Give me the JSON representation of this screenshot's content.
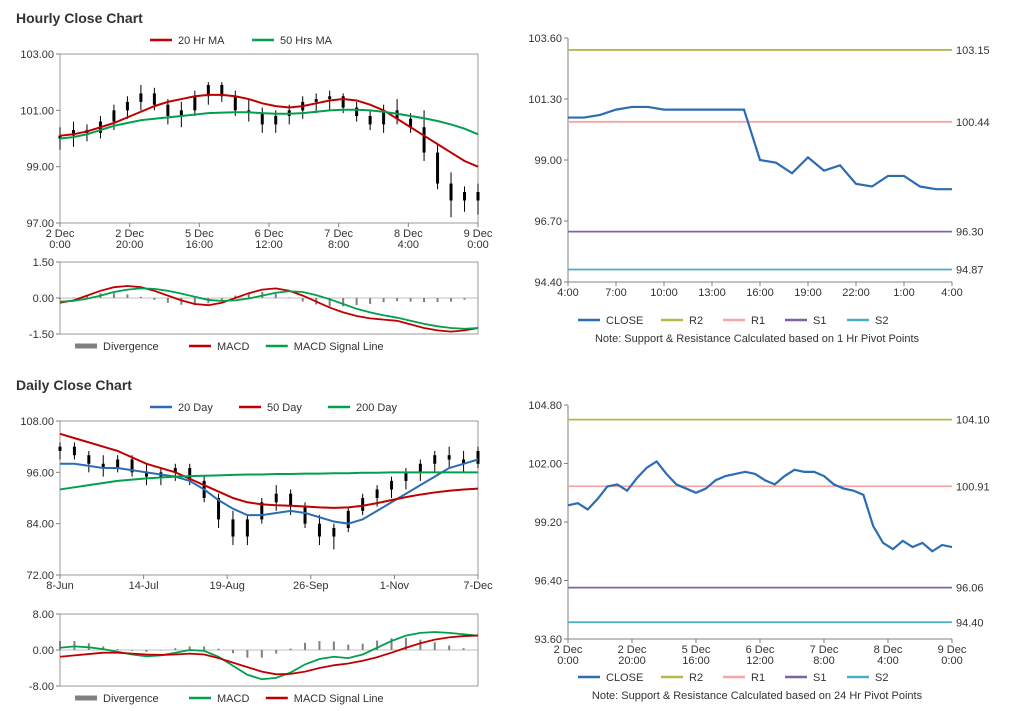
{
  "colors": {
    "axis": "#808080",
    "gridline": "#e0e0e0",
    "text": "#333333",
    "divergence": "#808080",
    "red": "#c00000",
    "green": "#00a04e",
    "blue": "#2b6cb3",
    "black": "#000000",
    "olive": "#b7b74a",
    "pink": "#f6a6a6",
    "purple": "#8064a2",
    "cyan": "#4bacc6",
    "background": "#ffffff"
  },
  "typography": {
    "title_fontsize": 14,
    "axis_fontsize": 11,
    "legend_fontsize": 11,
    "value_label_fontsize": 11
  },
  "hourly": {
    "title": "Hourly Close Chart",
    "main": {
      "y_ticks": [
        97,
        99,
        101,
        103
      ],
      "x_ticks": [
        "2 Dec\n0:00",
        "2 Dec\n20:00",
        "5 Dec\n16:00",
        "6 Dec\n12:00",
        "7 Dec\n8:00",
        "8 Dec\n4:00",
        "9 Dec\n0:00"
      ],
      "legend": {
        "ma20": "20 Hr MA",
        "ma50": "50 Hrs MA"
      },
      "ma20_color": "#c00000",
      "ma50_color": "#00a04e",
      "price_color": "#000000",
      "candles": [
        {
          "x": 0,
          "o": 100.0,
          "h": 100.4,
          "l": 99.6,
          "c": 100.1
        },
        {
          "x": 1,
          "o": 100.1,
          "h": 100.6,
          "l": 99.7,
          "c": 100.3
        },
        {
          "x": 2,
          "o": 100.3,
          "h": 100.5,
          "l": 99.9,
          "c": 100.2
        },
        {
          "x": 3,
          "o": 100.2,
          "h": 100.8,
          "l": 100.0,
          "c": 100.6
        },
        {
          "x": 4,
          "o": 100.6,
          "h": 101.2,
          "l": 100.3,
          "c": 101.0
        },
        {
          "x": 5,
          "o": 101.0,
          "h": 101.5,
          "l": 100.7,
          "c": 101.3
        },
        {
          "x": 6,
          "o": 101.3,
          "h": 101.9,
          "l": 101.0,
          "c": 101.6
        },
        {
          "x": 7,
          "o": 101.6,
          "h": 101.8,
          "l": 101.0,
          "c": 101.2
        },
        {
          "x": 8,
          "o": 101.2,
          "h": 101.4,
          "l": 100.5,
          "c": 100.8
        },
        {
          "x": 9,
          "o": 100.8,
          "h": 101.3,
          "l": 100.4,
          "c": 101.0
        },
        {
          "x": 10,
          "o": 101.0,
          "h": 101.7,
          "l": 100.8,
          "c": 101.5
        },
        {
          "x": 11,
          "o": 101.5,
          "h": 102.0,
          "l": 101.2,
          "c": 101.9
        },
        {
          "x": 12,
          "o": 101.9,
          "h": 102.0,
          "l": 101.3,
          "c": 101.5
        },
        {
          "x": 13,
          "o": 101.5,
          "h": 101.7,
          "l": 100.8,
          "c": 101.0
        },
        {
          "x": 14,
          "o": 101.0,
          "h": 101.4,
          "l": 100.6,
          "c": 100.9
        },
        {
          "x": 15,
          "o": 100.9,
          "h": 101.1,
          "l": 100.2,
          "c": 100.5
        },
        {
          "x": 16,
          "o": 100.5,
          "h": 101.0,
          "l": 100.2,
          "c": 100.8
        },
        {
          "x": 17,
          "o": 100.8,
          "h": 101.2,
          "l": 100.5,
          "c": 101.0
        },
        {
          "x": 18,
          "o": 101.0,
          "h": 101.5,
          "l": 100.7,
          "c": 101.3
        },
        {
          "x": 19,
          "o": 101.3,
          "h": 101.6,
          "l": 100.9,
          "c": 101.4
        },
        {
          "x": 20,
          "o": 101.4,
          "h": 101.7,
          "l": 101.0,
          "c": 101.5
        },
        {
          "x": 21,
          "o": 101.5,
          "h": 101.6,
          "l": 100.9,
          "c": 101.1
        },
        {
          "x": 22,
          "o": 101.1,
          "h": 101.3,
          "l": 100.6,
          "c": 100.8
        },
        {
          "x": 23,
          "o": 100.8,
          "h": 101.0,
          "l": 100.3,
          "c": 100.5
        },
        {
          "x": 24,
          "o": 100.5,
          "h": 101.2,
          "l": 100.2,
          "c": 101.0
        },
        {
          "x": 25,
          "o": 101.0,
          "h": 101.4,
          "l": 100.5,
          "c": 100.7
        },
        {
          "x": 26,
          "o": 100.7,
          "h": 100.9,
          "l": 100.2,
          "c": 100.4
        },
        {
          "x": 27,
          "o": 100.4,
          "h": 101.0,
          "l": 99.2,
          "c": 99.5
        },
        {
          "x": 28,
          "o": 99.5,
          "h": 99.8,
          "l": 98.2,
          "c": 98.4
        },
        {
          "x": 29,
          "o": 98.4,
          "h": 98.8,
          "l": 97.2,
          "c": 97.8
        },
        {
          "x": 30,
          "o": 97.8,
          "h": 98.3,
          "l": 97.4,
          "c": 98.1
        },
        {
          "x": 31,
          "o": 98.1,
          "h": 98.4,
          "l": 97.3,
          "c": 97.8
        }
      ],
      "ma20": [
        100.1,
        100.15,
        100.25,
        100.4,
        100.55,
        100.75,
        100.95,
        101.15,
        101.3,
        101.4,
        101.5,
        101.55,
        101.55,
        101.5,
        101.4,
        101.25,
        101.15,
        101.1,
        101.15,
        101.25,
        101.35,
        101.4,
        101.35,
        101.2,
        101.0,
        100.7,
        100.4,
        100.1,
        99.8,
        99.5,
        99.2,
        99.0
      ],
      "ma50": [
        100.0,
        100.05,
        100.15,
        100.3,
        100.45,
        100.55,
        100.65,
        100.7,
        100.75,
        100.8,
        100.85,
        100.9,
        100.92,
        100.93,
        100.93,
        100.9,
        100.88,
        100.88,
        100.9,
        100.95,
        101.0,
        101.02,
        101.02,
        101.0,
        100.95,
        100.88,
        100.8,
        100.72,
        100.62,
        100.5,
        100.35,
        100.15
      ]
    },
    "macd": {
      "y_ticks": [
        -1.5,
        0,
        1.5
      ],
      "legend": {
        "div": "Divergence",
        "macd": "MACD",
        "sig": "MACD Signal Line"
      },
      "macd_color": "#c00000",
      "sig_color": "#00a04e",
      "div_color": "#808080",
      "macd_vals": [
        -0.2,
        -0.1,
        0.1,
        0.3,
        0.45,
        0.5,
        0.45,
        0.3,
        0.1,
        -0.1,
        -0.25,
        -0.3,
        -0.2,
        0.0,
        0.2,
        0.35,
        0.4,
        0.3,
        0.1,
        -0.15,
        -0.4,
        -0.6,
        -0.75,
        -0.85,
        -0.9,
        -0.95,
        -1.1,
        -1.25,
        -1.35,
        -1.4,
        -1.35,
        -1.25
      ],
      "sig_vals": [
        -0.15,
        -0.12,
        -0.03,
        0.1,
        0.25,
        0.35,
        0.4,
        0.38,
        0.3,
        0.18,
        0.05,
        -0.08,
        -0.12,
        -0.1,
        -0.02,
        0.1,
        0.22,
        0.28,
        0.25,
        0.12,
        -0.05,
        -0.25,
        -0.45,
        -0.6,
        -0.72,
        -0.82,
        -0.95,
        -1.08,
        -1.18,
        -1.25,
        -1.28,
        -1.25
      ]
    },
    "sr": {
      "y_ticks": [
        94.4,
        96.7,
        99.0,
        101.3,
        103.6
      ],
      "x_ticks": [
        "4:00",
        "7:00",
        "10:00",
        "13:00",
        "16:00",
        "19:00",
        "22:00",
        "1:00",
        "4:00"
      ],
      "levels": {
        "r2": 103.15,
        "r1": 100.44,
        "s1": 96.3,
        "s2": 94.87
      },
      "level_labels": {
        "r2": "103.15",
        "r1": "100.44",
        "s1": "96.30",
        "s2": "94.87"
      },
      "legend": {
        "close": "CLOSE",
        "r2": "R2",
        "r1": "R1",
        "s1": "S1",
        "s2": "S2"
      },
      "close_color": "#2b6cb3",
      "r2_color": "#b7b74a",
      "r1_color": "#f6a6a6",
      "s1_color": "#8064a2",
      "s2_color": "#4bacc6",
      "close": [
        100.6,
        100.6,
        100.7,
        100.9,
        101.0,
        101.0,
        100.9,
        100.9,
        100.9,
        100.9,
        100.9,
        100.9,
        99.0,
        98.9,
        98.5,
        99.1,
        98.6,
        98.8,
        98.1,
        98.0,
        98.4,
        98.4,
        98.0,
        97.9,
        97.9
      ],
      "note": "Note: Support & Resistance Calculated based on 1 Hr Pivot Points"
    }
  },
  "daily": {
    "title": "Daily Close Chart",
    "main": {
      "y_ticks": [
        72,
        84,
        96,
        108
      ],
      "x_ticks": [
        "8-Jun",
        "14-Jul",
        "19-Aug",
        "26-Sep",
        "1-Nov",
        "7-Dec"
      ],
      "legend": {
        "d20": "20 Day",
        "d50": "50 Day",
        "d200": "200 Day"
      },
      "d20_color": "#2b6cb3",
      "d50_color": "#c00000",
      "d200_color": "#00a04e",
      "price_color": "#000000",
      "candles": [
        {
          "x": 0,
          "o": 101,
          "h": 103,
          "l": 99,
          "c": 102
        },
        {
          "x": 1,
          "o": 102,
          "h": 103,
          "l": 99,
          "c": 100
        },
        {
          "x": 2,
          "o": 100,
          "h": 101,
          "l": 96,
          "c": 98
        },
        {
          "x": 3,
          "o": 98,
          "h": 100,
          "l": 95,
          "c": 97
        },
        {
          "x": 4,
          "o": 97,
          "h": 100,
          "l": 96,
          "c": 99
        },
        {
          "x": 5,
          "o": 99,
          "h": 100,
          "l": 95,
          "c": 96
        },
        {
          "x": 6,
          "o": 96,
          "h": 98,
          "l": 93,
          "c": 95
        },
        {
          "x": 7,
          "o": 95,
          "h": 97,
          "l": 93,
          "c": 96
        },
        {
          "x": 8,
          "o": 96,
          "h": 98,
          "l": 94,
          "c": 97
        },
        {
          "x": 9,
          "o": 97,
          "h": 98,
          "l": 93,
          "c": 94
        },
        {
          "x": 10,
          "o": 94,
          "h": 95,
          "l": 89,
          "c": 90
        },
        {
          "x": 11,
          "o": 90,
          "h": 91,
          "l": 83,
          "c": 85
        },
        {
          "x": 12,
          "o": 85,
          "h": 87,
          "l": 79,
          "c": 81
        },
        {
          "x": 13,
          "o": 81,
          "h": 86,
          "l": 79,
          "c": 85
        },
        {
          "x": 14,
          "o": 85,
          "h": 90,
          "l": 84,
          "c": 89
        },
        {
          "x": 15,
          "o": 89,
          "h": 93,
          "l": 87,
          "c": 91
        },
        {
          "x": 16,
          "o": 91,
          "h": 92,
          "l": 86,
          "c": 88
        },
        {
          "x": 17,
          "o": 88,
          "h": 89,
          "l": 83,
          "c": 84
        },
        {
          "x": 18,
          "o": 84,
          "h": 86,
          "l": 79,
          "c": 81
        },
        {
          "x": 19,
          "o": 81,
          "h": 84,
          "l": 78,
          "c": 83
        },
        {
          "x": 20,
          "o": 83,
          "h": 88,
          "l": 82,
          "c": 87
        },
        {
          "x": 21,
          "o": 87,
          "h": 91,
          "l": 86,
          "c": 90
        },
        {
          "x": 22,
          "o": 90,
          "h": 93,
          "l": 88,
          "c": 92
        },
        {
          "x": 23,
          "o": 92,
          "h": 95,
          "l": 90,
          "c": 94
        },
        {
          "x": 24,
          "o": 94,
          "h": 97,
          "l": 92,
          "c": 96
        },
        {
          "x": 25,
          "o": 96,
          "h": 99,
          "l": 94,
          "c": 98
        },
        {
          "x": 26,
          "o": 98,
          "h": 101,
          "l": 96,
          "c": 100
        },
        {
          "x": 27,
          "o": 100,
          "h": 102,
          "l": 97,
          "c": 99
        },
        {
          "x": 28,
          "o": 99,
          "h": 101,
          "l": 96,
          "c": 98
        },
        {
          "x": 29,
          "o": 98,
          "h": 102,
          "l": 97,
          "c": 101
        }
      ],
      "d20": [
        98,
        98,
        97.5,
        97,
        97,
        96.5,
        96,
        95.5,
        95,
        94,
        92,
        89.5,
        87.5,
        86,
        86,
        86.5,
        87,
        86.5,
        85.5,
        84.5,
        84,
        85,
        87,
        89,
        91,
        93,
        95,
        97,
        98,
        99
      ],
      "d50": [
        105,
        104,
        103,
        102,
        101,
        99.5,
        98,
        97,
        96,
        94.5,
        93,
        91.5,
        90,
        89,
        88.5,
        88.3,
        88.2,
        88,
        87.8,
        87.7,
        87.8,
        88.2,
        88.8,
        89.5,
        90.2,
        90.8,
        91.3,
        91.7,
        92.0,
        92.2
      ],
      "d200": [
        92,
        92.5,
        93,
        93.5,
        94,
        94.3,
        94.6,
        94.8,
        95,
        95.1,
        95.2,
        95.3,
        95.4,
        95.5,
        95.5,
        95.6,
        95.6,
        95.7,
        95.7,
        95.8,
        95.8,
        95.9,
        95.9,
        96,
        96,
        96,
        96,
        96,
        96,
        96
      ]
    },
    "macd": {
      "y_ticks": [
        -8,
        0,
        8
      ],
      "legend": {
        "div": "Divergence",
        "macd": "MACD",
        "sig": "MACD Signal Line"
      },
      "macd_color": "#00a04e",
      "sig_color": "#c00000",
      "div_color": "#808080",
      "macd_vals": [
        0.5,
        0.8,
        0.6,
        0.2,
        -0.4,
        -1.0,
        -1.4,
        -1.2,
        -0.6,
        0.0,
        -0.2,
        -1.5,
        -3.5,
        -5.5,
        -6.5,
        -6.2,
        -5.0,
        -3.2,
        -2.0,
        -1.5,
        -1.8,
        -1.0,
        0.5,
        2.0,
        3.2,
        3.8,
        4.0,
        3.8,
        3.5,
        3.2
      ],
      "sig_vals": [
        -1.5,
        -1.2,
        -0.9,
        -0.6,
        -0.6,
        -0.8,
        -1.0,
        -1.1,
        -1.0,
        -0.8,
        -1.0,
        -1.8,
        -2.8,
        -3.8,
        -4.8,
        -5.4,
        -5.3,
        -4.8,
        -4.0,
        -3.4,
        -3.0,
        -2.4,
        -1.6,
        -0.6,
        0.5,
        1.5,
        2.3,
        2.8,
        3.1,
        3.2
      ]
    },
    "sr": {
      "y_ticks": [
        93.6,
        96.4,
        99.2,
        102.0,
        104.8
      ],
      "x_ticks": [
        "2 Dec\n0:00",
        "2 Dec\n20:00",
        "5 Dec\n16:00",
        "6 Dec\n12:00",
        "7 Dec\n8:00",
        "8 Dec\n4:00",
        "9 Dec\n0:00"
      ],
      "levels": {
        "r2": 104.1,
        "r1": 100.91,
        "s1": 96.06,
        "s2": 94.4
      },
      "level_labels": {
        "r2": "104.10",
        "r1": "100.91",
        "s1": "96.06",
        "s2": "94.40"
      },
      "legend": {
        "close": "CLOSE",
        "r2": "R2",
        "r1": "R1",
        "s1": "S1",
        "s2": "S2"
      },
      "close_color": "#2b6cb3",
      "r2_color": "#b7b74a",
      "r1_color": "#f6a6a6",
      "s1_color": "#8064a2",
      "s2_color": "#4bacc6",
      "close": [
        100.0,
        100.1,
        99.8,
        100.3,
        100.9,
        101.0,
        100.7,
        101.3,
        101.8,
        102.1,
        101.5,
        101.0,
        100.8,
        100.6,
        100.8,
        101.2,
        101.4,
        101.5,
        101.6,
        101.5,
        101.2,
        101.0,
        101.4,
        101.7,
        101.6,
        101.6,
        101.4,
        101.0,
        100.8,
        100.7,
        100.5,
        99.0,
        98.2,
        97.9,
        98.3,
        98.0,
        98.2,
        97.8,
        98.1,
        98.0
      ],
      "note": "Note:  Support & Resistance Calculated based on 24 Hr Pivot Points"
    }
  }
}
